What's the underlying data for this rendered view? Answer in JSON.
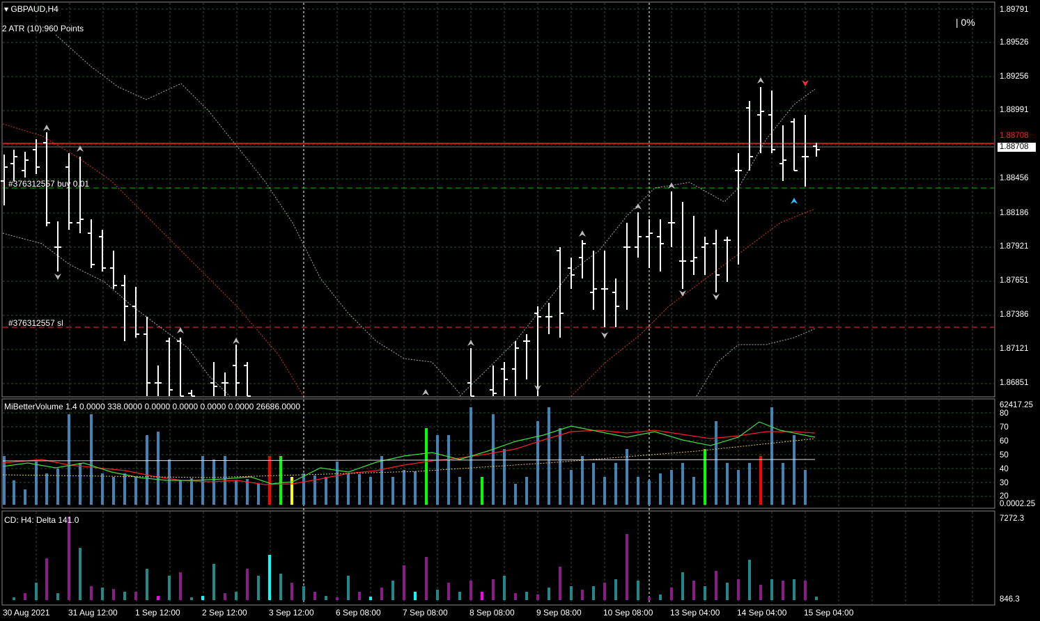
{
  "header": {
    "symbol_timeframe": "GBPAUD,H4",
    "atr_label": "2 ATR (10):960 Points",
    "percent_display": "| 0%"
  },
  "orders": {
    "buy_label": "#376312557 buy 0.01",
    "sl_label": "#376312557 sl"
  },
  "price_axis": {
    "ticks": [
      "1.89791",
      "1.89526",
      "1.89256",
      "1.88991",
      "1.88708",
      "1.88456",
      "1.88186",
      "1.87921",
      "1.87651",
      "1.87386",
      "1.87121",
      "1.86851"
    ],
    "current_price": "1.88708"
  },
  "volume_panel": {
    "label": "MiBetterVolume 1.4 0.0000 338.0000 0.0000 0.0000 0.0000 0.0000 26686.0000",
    "ticks": [
      "80",
      "70",
      "60",
      "50",
      "40",
      "30",
      "20"
    ],
    "max_label": "62417.25",
    "min_label": "0.0002.25"
  },
  "delta_panel": {
    "label": "CD: H4: Delta  141.0",
    "max_label": "7272.3",
    "min_label": "846.3"
  },
  "time_axis": {
    "labels": [
      "30 Aug 2021",
      "31 Aug 12:00",
      "1 Sep 12:00",
      "2 Sep 12:00",
      "3 Sep 12:00",
      "6 Sep 08:00",
      "7 Sep 08:00",
      "8 Sep 08:00",
      "9 Sep 08:00",
      "10 Sep 08:00",
      "13 Sep 04:00",
      "14 Sep 04:00",
      "15 Sep 04:00"
    ]
  },
  "colors": {
    "background": "#000000",
    "grid": "#2f4f2f",
    "bar": "#ffffff",
    "buy_line": "#00c000",
    "sl_line": "#ff3030",
    "bid_line": "#ff2020",
    "volume_blue": "#4682b4",
    "volume_red": "#ff0000",
    "volume_green": "#00ff00",
    "volume_yellow": "#ffff00",
    "delta_teal": "#1f8a8a",
    "delta_purple": "#8b1a8b",
    "delta_cyan": "#00ffff",
    "delta_magenta": "#ff00ff"
  }
}
